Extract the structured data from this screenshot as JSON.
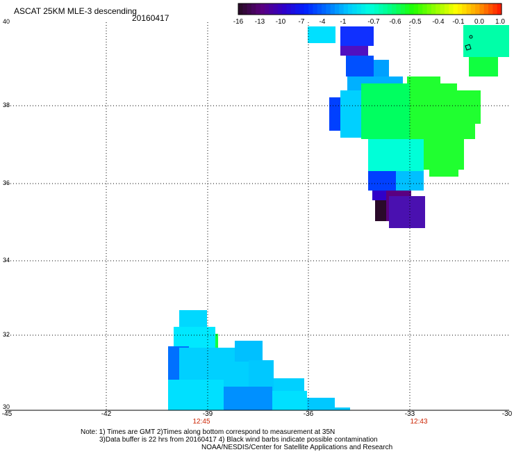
{
  "header": {
    "title": "ASCAT 25KM MLE-3 descending",
    "date": "20160417"
  },
  "colorbar": {
    "labels": [
      "-16",
      "-13",
      "-10",
      "-7",
      "-4",
      "-1",
      "-0.7",
      "-0.6",
      "-0.5",
      "-0.4",
      "-0.1",
      "0.0",
      "1.0"
    ],
    "colors": [
      "#2a0a2a",
      "#5a0080",
      "#3000c8",
      "#0020ff",
      "#0070ff",
      "#00c8ff",
      "#00ffe0",
      "#00ff80",
      "#20ff00",
      "#90ff00",
      "#ffff00",
      "#ffa000",
      "#ff2000"
    ]
  },
  "axes": {
    "lat_labels": [
      "40",
      "38",
      "36",
      "34",
      "32",
      "30"
    ],
    "lon_labels": [
      "-45",
      "-42",
      "-39",
      "-36",
      "-33",
      "-30"
    ],
    "grid": "dotted",
    "time_labels": [
      "12:45",
      "12:43"
    ]
  },
  "notes": {
    "line1": "Note: 1) Times are GMT 2)Times along bottom correspond to measurement at 35N",
    "line2": "3)Data buffer is 22 hrs from 20160417 4) Black wind barbs indicate possible contamination",
    "line3": "NOAA/NESDIS/Center for Satellite Applications and Research"
  }
}
